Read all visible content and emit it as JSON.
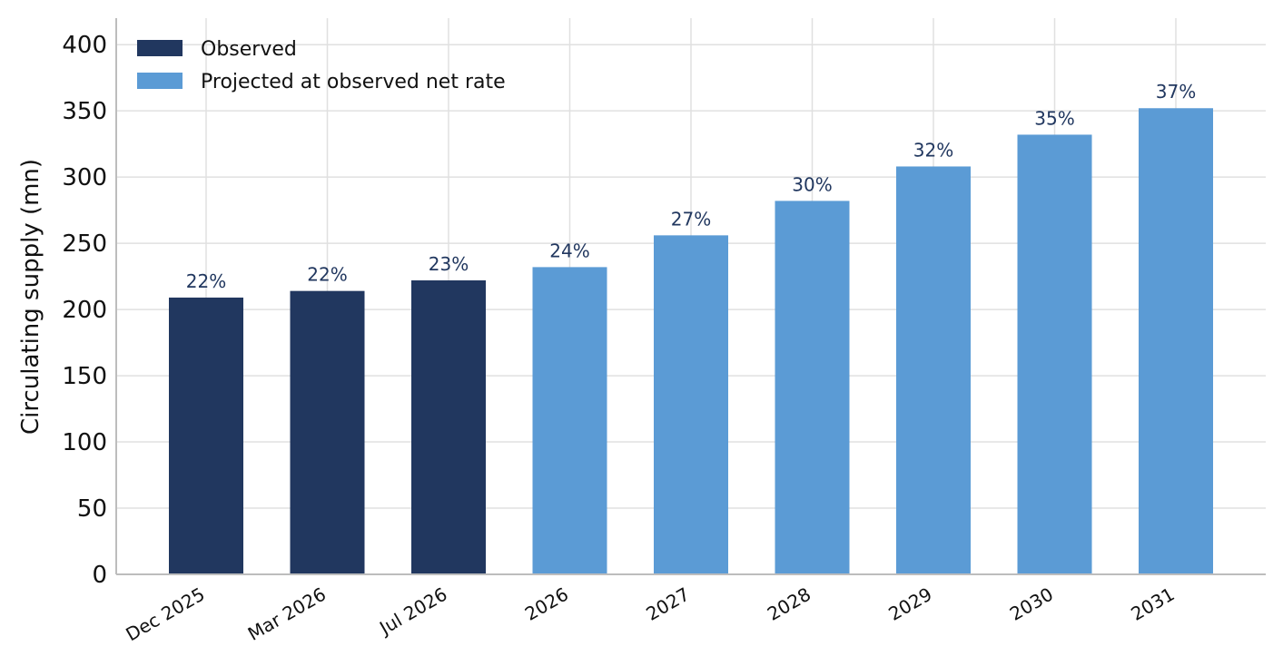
{
  "colors": {
    "observed": "#21375f",
    "projected": "#5b9bd5",
    "label_text": "#21375f",
    "grid": "#e0e0e0",
    "axis": "#bdbdbd"
  },
  "legend": {
    "placement": "top-left",
    "items": [
      {
        "label": "Observed",
        "color": "#21375f"
      },
      {
        "label": "Projected at observed net rate",
        "color": "#5b9bd5"
      }
    ]
  },
  "chart_data": {
    "type": "bar",
    "title": "",
    "xlabel": "",
    "ylabel": "Circulating supply (mn)",
    "ylim": [
      0,
      420
    ],
    "yticks": [
      0,
      50,
      100,
      150,
      200,
      250,
      300,
      350,
      400
    ],
    "grid": true,
    "categories": [
      "Dec 2025",
      "Mar 2026",
      "Jul 2026",
      "2026",
      "2027",
      "2028",
      "2029",
      "2030",
      "2031"
    ],
    "values": [
      209,
      214,
      222,
      232,
      256,
      282,
      308,
      332,
      352
    ],
    "groups": [
      "Observed",
      "Observed",
      "Observed",
      "Projected at observed net rate",
      "Projected at observed net rate",
      "Projected at observed net rate",
      "Projected at observed net rate",
      "Projected at observed net rate",
      "Projected at observed net rate"
    ],
    "data_labels": [
      "22%",
      "22%",
      "23%",
      "24%",
      "27%",
      "30%",
      "32%",
      "35%",
      "37%"
    ]
  }
}
